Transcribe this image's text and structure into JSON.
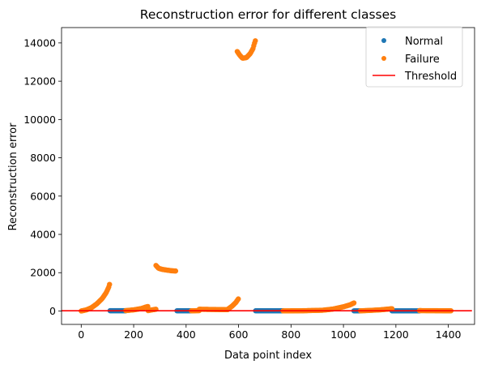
{
  "chart_data": {
    "type": "scatter",
    "title": "Reconstruction error for different classes",
    "xlabel": "Data point index",
    "ylabel": "Reconstruction error",
    "xlim": [
      -75,
      1500
    ],
    "ylim": [
      -700,
      14800
    ],
    "xticks": [
      0,
      200,
      400,
      600,
      800,
      1000,
      1200,
      1400
    ],
    "yticks": [
      0,
      2000,
      4000,
      6000,
      8000,
      10000,
      12000,
      14000
    ],
    "grid": false,
    "legend_position": "top-right",
    "colors": {
      "normal": "#1f77b4",
      "failure": "#ff7f0e",
      "threshold": "#ff0000"
    },
    "series": [
      {
        "name": "Normal",
        "kind": "points",
        "segments": [
          {
            "x_start": 110,
            "x_end": 170,
            "y": 15
          },
          {
            "x_start": 365,
            "x_end": 420,
            "y": 10
          },
          {
            "x_start": 665,
            "x_end": 770,
            "y": 10
          },
          {
            "x_start": 1040,
            "x_end": 1065,
            "y": 8
          },
          {
            "x_start": 1185,
            "x_end": 1290,
            "y": 8
          }
        ]
      },
      {
        "name": "Failure",
        "kind": "points",
        "segments": [
          {
            "x_start": 0,
            "x_end": 110,
            "points": [
              [
                0,
                0
              ],
              [
                20,
                60
              ],
              [
                40,
                180
              ],
              [
                60,
                380
              ],
              [
                80,
                650
              ],
              [
                95,
                950
              ],
              [
                105,
                1250
              ],
              [
                110,
                1480
              ]
            ]
          },
          {
            "x_start": 170,
            "x_end": 255,
            "points": [
              [
                170,
                20
              ],
              [
                200,
                60
              ],
              [
                230,
                130
              ],
              [
                245,
                200
              ],
              [
                255,
                240
              ]
            ]
          },
          {
            "x_start": 255,
            "x_end": 285,
            "points": [
              [
                255,
                20
              ],
              [
                270,
                60
              ],
              [
                285,
                90
              ]
            ]
          },
          {
            "x_start": 285,
            "x_end": 360,
            "points": [
              [
                285,
                2380
              ],
              [
                295,
                2230
              ],
              [
                310,
                2170
              ],
              [
                330,
                2130
              ],
              [
                345,
                2100
              ],
              [
                360,
                2090
              ]
            ]
          },
          {
            "x_start": 420,
            "x_end": 450,
            "points": [
              [
                420,
                10
              ],
              [
                450,
                20
              ]
            ]
          },
          {
            "x_start": 450,
            "x_end": 560,
            "points": [
              [
                450,
                90
              ],
              [
                500,
                80
              ],
              [
                560,
                70
              ]
            ]
          },
          {
            "x_start": 560,
            "x_end": 600,
            "points": [
              [
                560,
                100
              ],
              [
                575,
                250
              ],
              [
                590,
                450
              ],
              [
                600,
                650
              ]
            ]
          },
          {
            "x_start": 595,
            "x_end": 665,
            "points": [
              [
                595,
                13550
              ],
              [
                605,
                13350
              ],
              [
                615,
                13200
              ],
              [
                630,
                13230
              ],
              [
                645,
                13450
              ],
              [
                655,
                13700
              ],
              [
                660,
                13950
              ],
              [
                665,
                14150
              ]
            ]
          },
          {
            "x_start": 770,
            "x_end": 1040,
            "points": [
              [
                770,
                5
              ],
              [
                850,
                15
              ],
              [
                920,
                40
              ],
              [
                960,
                100
              ],
              [
                1000,
                220
              ],
              [
                1025,
                320
              ],
              [
                1040,
                420
              ]
            ]
          },
          {
            "x_start": 1065,
            "x_end": 1185,
            "points": [
              [
                1065,
                10
              ],
              [
                1100,
                30
              ],
              [
                1140,
                60
              ],
              [
                1170,
                100
              ],
              [
                1185,
                120
              ]
            ]
          },
          {
            "x_start": 1290,
            "x_end": 1410,
            "points": [
              [
                1290,
                20
              ],
              [
                1350,
                15
              ],
              [
                1410,
                10
              ]
            ]
          }
        ]
      },
      {
        "name": "Threshold",
        "kind": "line",
        "x": [
          -75,
          1490
        ],
        "y": [
          10,
          10
        ]
      }
    ]
  }
}
